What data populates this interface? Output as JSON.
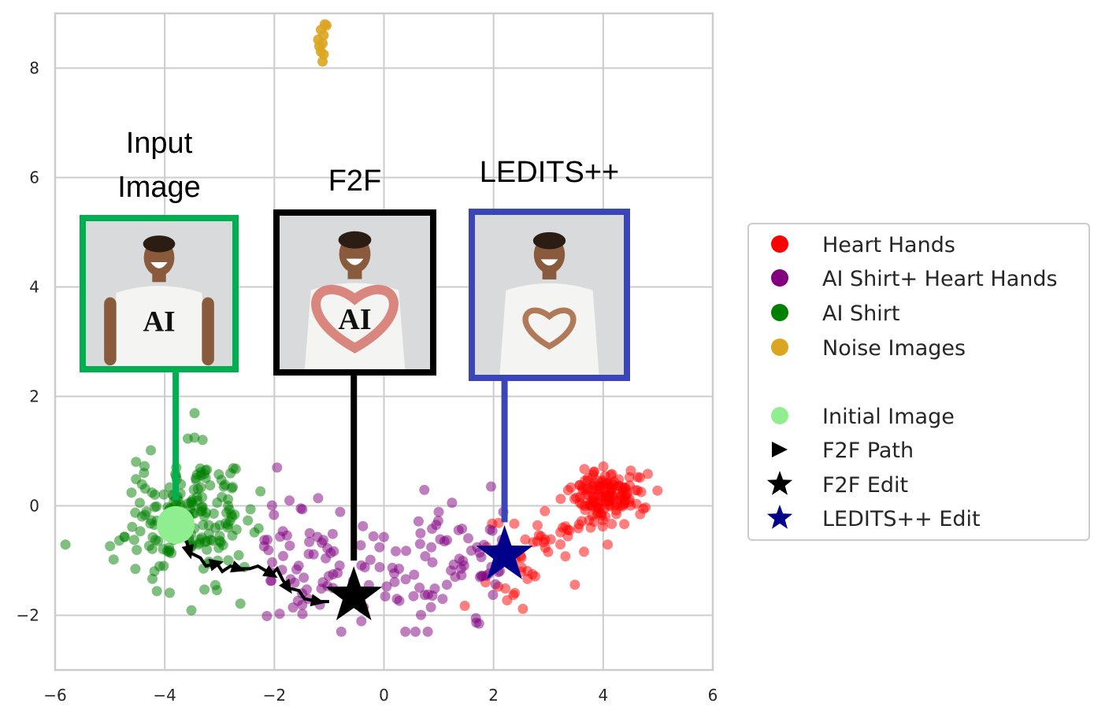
{
  "chart_data": {
    "type": "scatter",
    "xlim": [
      -6,
      6
    ],
    "ylim": [
      -3,
      9
    ],
    "xticks": [
      -6,
      -4,
      -2,
      0,
      2,
      4,
      6
    ],
    "yticks": [
      -2,
      0,
      2,
      4,
      6,
      8
    ],
    "xtick_labels": [
      "−6",
      "−4",
      "−2",
      "0",
      "2",
      "4",
      "6"
    ],
    "ytick_labels": [
      "−2",
      "0",
      "2",
      "4",
      "6",
      "8"
    ],
    "grid": true,
    "legend_position": "center-right (outside axes)",
    "series": [
      {
        "name": "Heart Hands",
        "color": "#ff0000",
        "kind": "cloud",
        "center": [
          4.1,
          0.2
        ],
        "spread": [
          0.35,
          0.22
        ],
        "tail_toward": [
          1.8,
          -1.5
        ],
        "count": 190
      },
      {
        "name": "AI Shirt+ Heart Hands",
        "color": "#800080",
        "kind": "cloud",
        "center": [
          -0.4,
          -1.0
        ],
        "spread": [
          1.1,
          0.8
        ],
        "count": 150
      },
      {
        "name": "AI Shirt",
        "color": "#008000",
        "kind": "cloud",
        "center": [
          -3.6,
          -0.2
        ],
        "spread": [
          0.55,
          0.6
        ],
        "count": 190
      },
      {
        "name": "Noise Images",
        "color": "#daa520",
        "kind": "points",
        "points": [
          [
            -1.08,
            8.8
          ],
          [
            -1.05,
            8.78
          ],
          [
            -1.15,
            8.7
          ],
          [
            -1.1,
            8.6
          ],
          [
            -1.2,
            8.52
          ],
          [
            -1.12,
            8.45
          ],
          [
            -1.18,
            8.4
          ],
          [
            -1.15,
            8.3
          ],
          [
            -1.1,
            8.25
          ],
          [
            -1.12,
            8.12
          ]
        ]
      }
    ],
    "initial_image": {
      "label": "Initial Image",
      "x": -3.8,
      "y": -0.35,
      "color": "#90ee90"
    },
    "f2f_path": {
      "label": "F2F Path",
      "color": "#000000",
      "points": [
        [
          -3.8,
          -0.55
        ],
        [
          -3.6,
          -0.65
        ],
        [
          -3.55,
          -0.85
        ],
        [
          -3.35,
          -0.95
        ],
        [
          -3.25,
          -1.1
        ],
        [
          -3.05,
          -1.05
        ],
        [
          -2.95,
          -1.2
        ],
        [
          -2.8,
          -1.1
        ],
        [
          -2.65,
          -1.15
        ],
        [
          -2.45,
          -1.15
        ],
        [
          -2.3,
          -1.1
        ],
        [
          -2.05,
          -1.25
        ],
        [
          -1.95,
          -1.15
        ],
        [
          -1.85,
          -1.35
        ],
        [
          -1.75,
          -1.5
        ],
        [
          -1.55,
          -1.55
        ],
        [
          -1.45,
          -1.7
        ],
        [
          -1.2,
          -1.75
        ],
        [
          -1.0,
          -1.75
        ]
      ]
    },
    "f2f_edit": {
      "label": "F2F Edit",
      "x": -0.55,
      "y": -1.65,
      "color": "#000000"
    },
    "ledits_edit": {
      "label": "LEDITS++ Edit",
      "x": 2.2,
      "y": -0.9,
      "color": "#00008b"
    },
    "panels": [
      {
        "title_lines": [
          "Input",
          "Image"
        ],
        "border_color": "#00b050",
        "anchor_x": -3.8,
        "anchor_y": 0.1,
        "shirt_text": "AI",
        "pose": "arms-down"
      },
      {
        "title_lines": [
          "F2F"
        ],
        "border_color": "#000000",
        "anchor_x": -0.55,
        "anchor_y": -1.0,
        "shirt_text": "AI",
        "pose": "heart-big"
      },
      {
        "title_lines": [
          "LEDITS++"
        ],
        "border_color": "#3a46b8",
        "anchor_x": 2.2,
        "anchor_y": -0.3,
        "shirt_text": "",
        "pose": "heart-small"
      }
    ],
    "legend": [
      {
        "label": "Heart Hands",
        "marker": "circle",
        "color": "#ff0000"
      },
      {
        "label": "AI Shirt+ Heart Hands",
        "marker": "circle",
        "color": "#800080"
      },
      {
        "label": "AI Shirt",
        "marker": "circle",
        "color": "#008000"
      },
      {
        "label": "Noise Images",
        "marker": "circle",
        "color": "#daa520"
      },
      {
        "label": "",
        "marker": "none",
        "color": ""
      },
      {
        "label": "Initial Image",
        "marker": "circle",
        "color": "#90ee90"
      },
      {
        "label": "F2F Path",
        "marker": "triangle",
        "color": "#000000"
      },
      {
        "label": "F2F Edit",
        "marker": "star",
        "color": "#000000"
      },
      {
        "label": "LEDITS++ Edit",
        "marker": "star",
        "color": "#00008b"
      }
    ]
  }
}
